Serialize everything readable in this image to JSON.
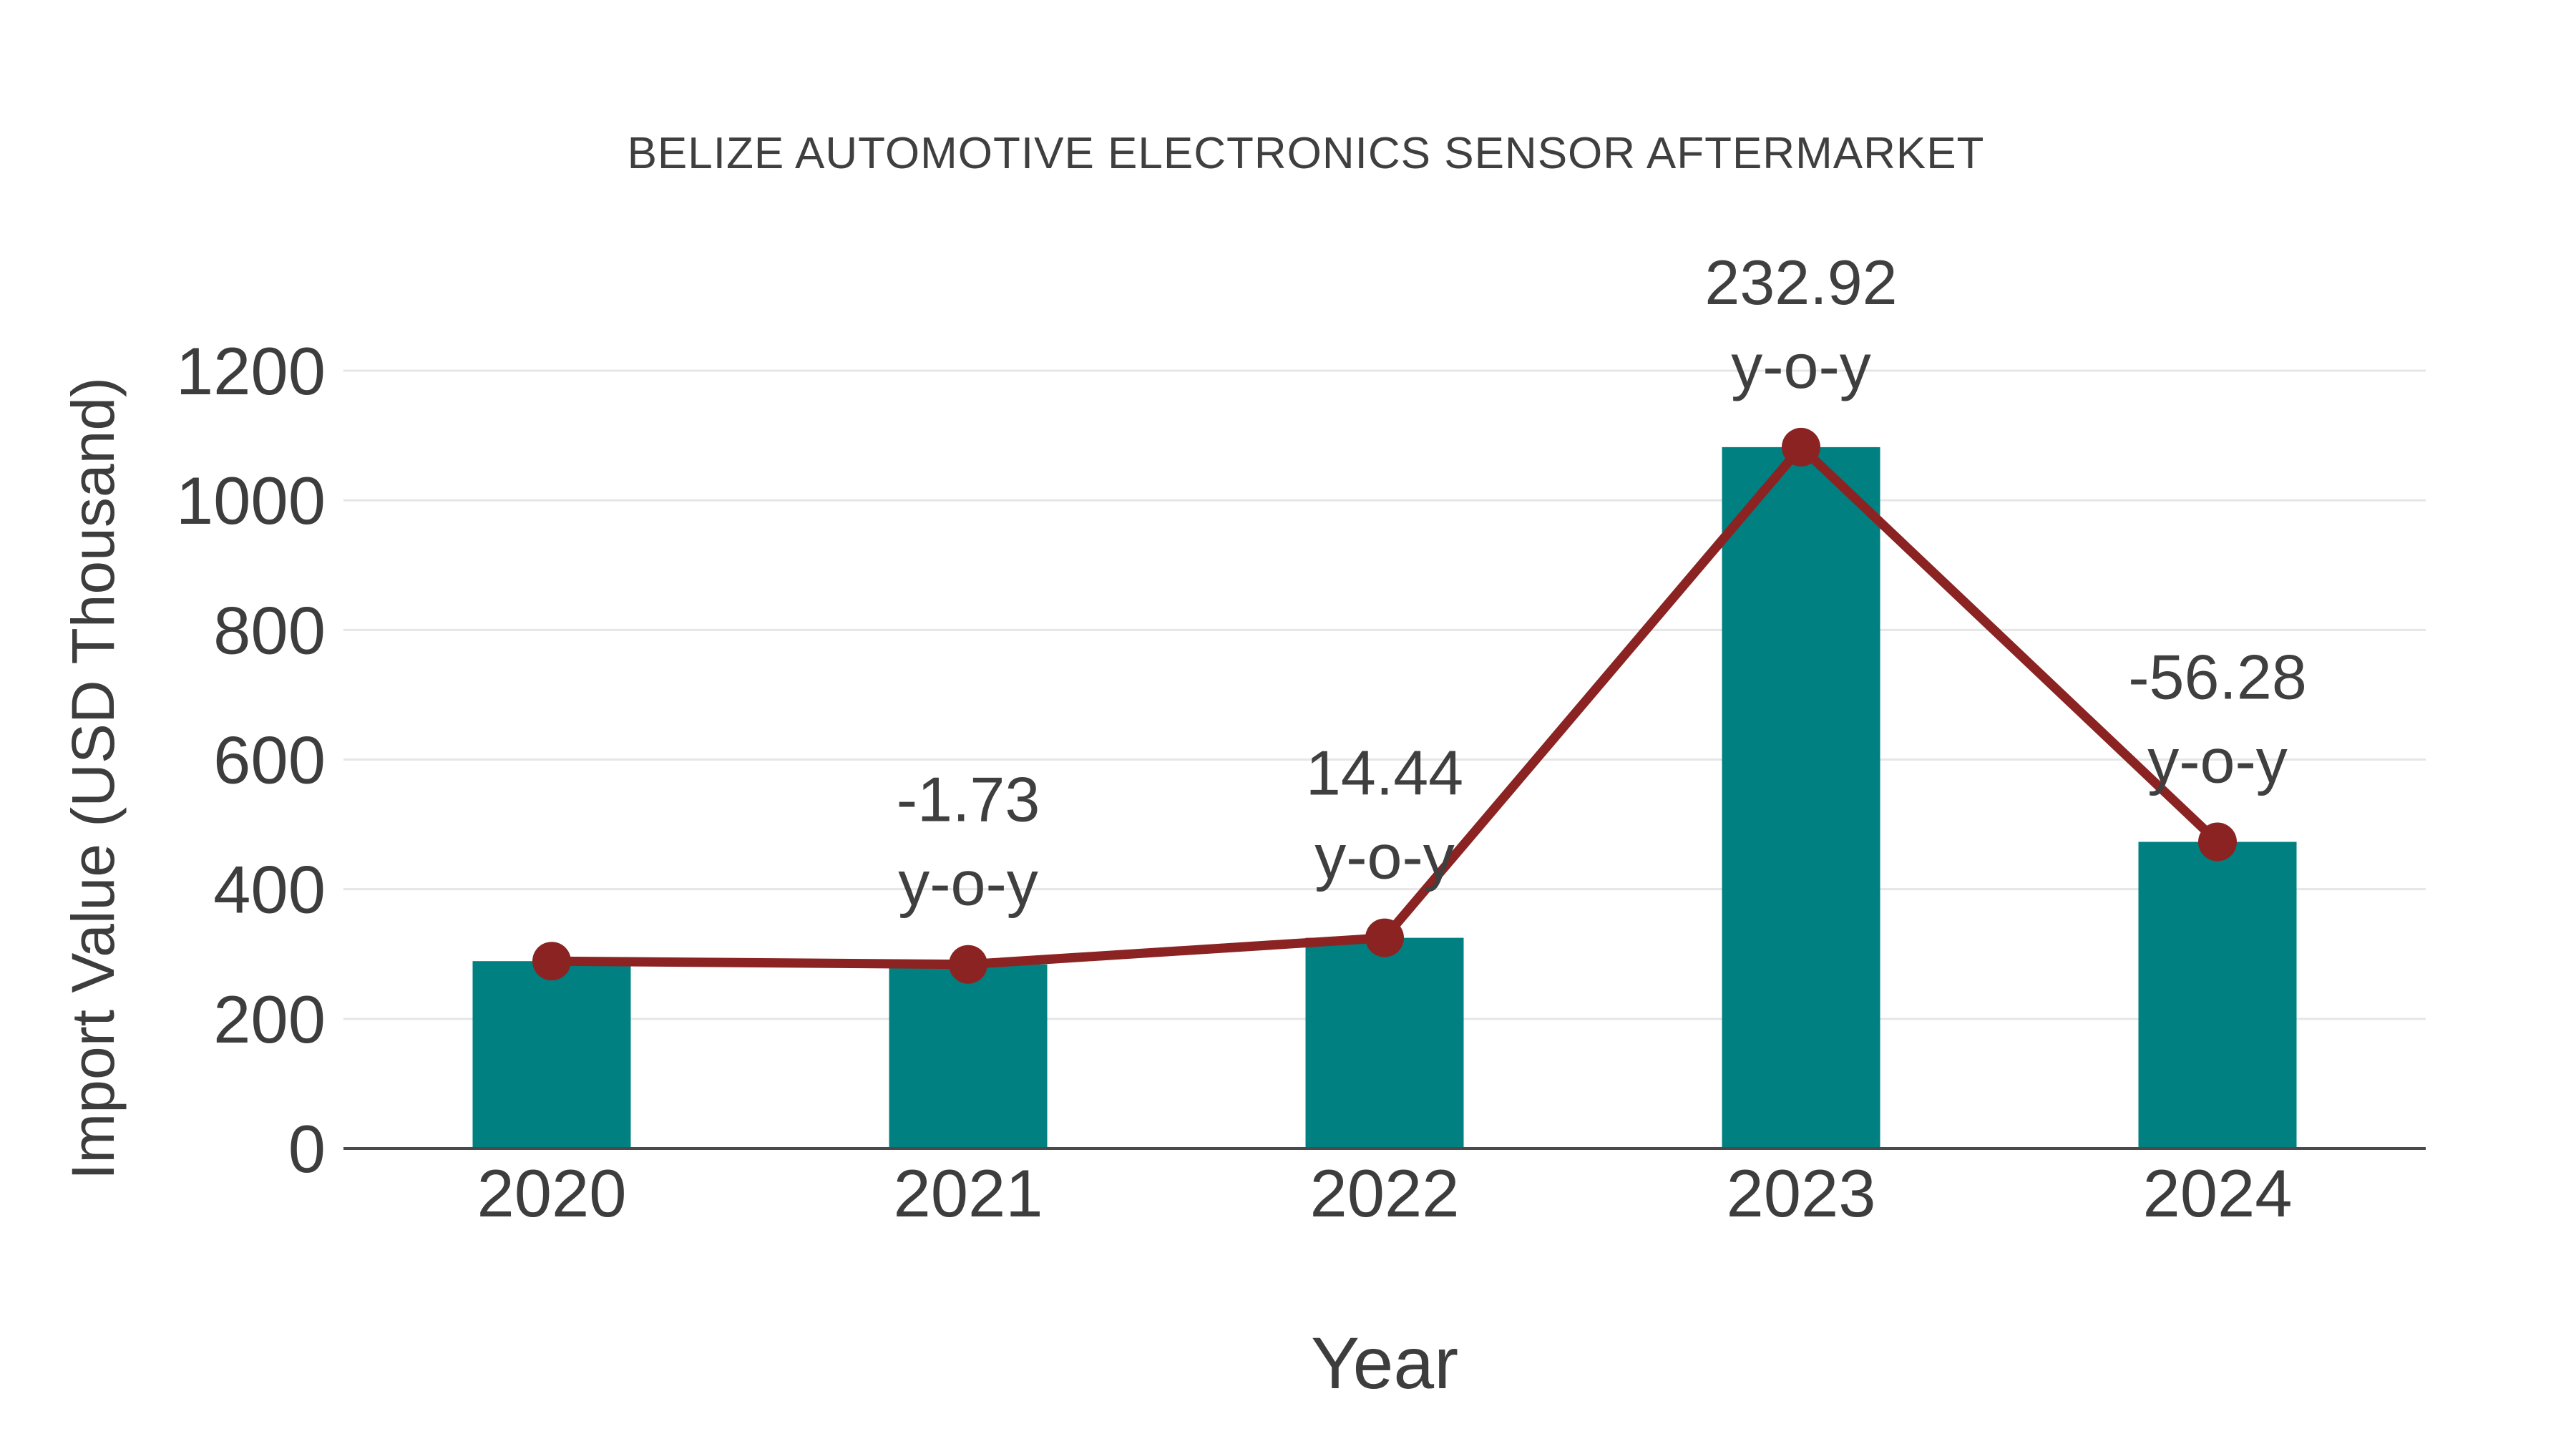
{
  "chart_data": {
    "type": "bar",
    "title": "BELIZE AUTOMOTIVE ELECTRONICS SENSOR AFTERMARKET",
    "xlabel": "Year",
    "ylabel": "Import Value (USD Thousand)",
    "categories": [
      "2020",
      "2021",
      "2022",
      "2023",
      "2024"
    ],
    "series": [
      {
        "name": "import-value-bars",
        "type": "bar",
        "color": "#008080",
        "values": [
          289,
          284,
          325,
          1082,
          473
        ]
      },
      {
        "name": "import-value-trend",
        "type": "line+markers",
        "color": "#8b2323",
        "values": [
          289,
          284,
          325,
          1082,
          473
        ]
      }
    ],
    "annotations": [
      {
        "category": "2021",
        "value_label": "-1.73",
        "unit_label": "y-o-y"
      },
      {
        "category": "2022",
        "value_label": "14.44",
        "unit_label": "y-o-y"
      },
      {
        "category": "2023",
        "value_label": "232.92",
        "unit_label": "y-o-y"
      },
      {
        "category": "2024",
        "value_label": "-56.28",
        "unit_label": "y-o-y"
      }
    ],
    "yticks": [
      0,
      200,
      400,
      600,
      800,
      1000,
      1200
    ],
    "ylim": [
      0,
      1310
    ],
    "grid": true,
    "legend_position": "none",
    "colors": {
      "bar": "#008080",
      "line": "#8b2323",
      "grid": "#e6e6e6",
      "axis_line": "#4a4a4a",
      "tick_text": "#3d3d3d",
      "title_text": "#3f3f3f",
      "annotation_text": "#3f3f3f",
      "background": "#ffffff"
    }
  }
}
